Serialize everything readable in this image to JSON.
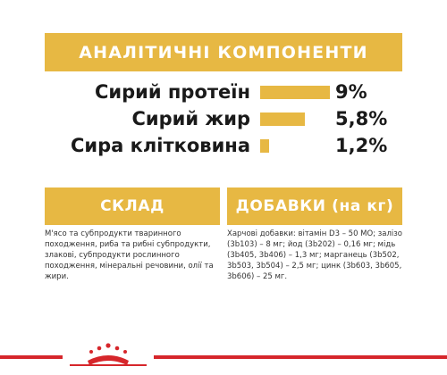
{
  "analysis": {
    "title": "АНАЛІТИЧНІ КОМПОНЕНТИ",
    "rows": [
      {
        "label": "Сирий протеїн",
        "value_label": "9%",
        "value": 9
      },
      {
        "label": "Сирий жир",
        "value_label": "5,8%",
        "value": 5.8
      },
      {
        "label": "Сира клітковина",
        "value_label": "1,2%",
        "value": 1.2
      }
    ]
  },
  "composition": {
    "title": "СКЛАД",
    "text": "М'ясо та субпродукти тваринного походження, риба та рибні субпродукти, злакові, субпродукти рослинного походження, мінеральні речовини, олії та жири."
  },
  "additives": {
    "title": "ДОБАВКИ (на кг)",
    "text": "Харчові добавки: вітамін D3 – 50 МО; залізо (3b103) – 8 мг; йод (3b202) – 0,16 мг; мідь (3b405, 3b406) – 1,3 мг; марганець (3b502, 3b503, 3b504) – 2,5 мг; цинк (3b603, 3b605, 3b606) – 25 мг."
  },
  "colors": {
    "accent": "#e7b843",
    "brand_red": "#d6262b"
  },
  "footer": {
    "logo_icon": "royal-canin-crown-icon"
  }
}
